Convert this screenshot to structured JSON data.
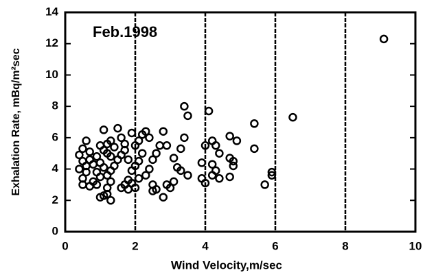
{
  "chart_data": {
    "type": "scatter",
    "annotation": "Feb.1998",
    "x_label": "Wind Velocity,m/sec",
    "y_label": "Exhalation Rate, mBq/m²sec",
    "xlim": [
      0,
      10
    ],
    "ylim": [
      0,
      14
    ],
    "xticks": [
      0,
      2,
      4,
      6,
      8,
      10
    ],
    "yticks": [
      0,
      2,
      4,
      6,
      8,
      10,
      12,
      14
    ],
    "grid": "x",
    "color": "#000000",
    "x": [
      9.1,
      6.5,
      5.4,
      5.4,
      5.7,
      5.9,
      5.9,
      4.1,
      3.4,
      3.5,
      3.4,
      4.2,
      4.0,
      4.3,
      4.7,
      4.9,
      4.4,
      4.7,
      4.8,
      4.8,
      4.2,
      4.3,
      3.9,
      4.2,
      4.4,
      3.9,
      4.0,
      4.7,
      3.3,
      3.1,
      3.2,
      3.3,
      3.5,
      3.1,
      3.0,
      2.9,
      2.8,
      2.9,
      2.7,
      2.6,
      2.5,
      2.4,
      2.3,
      2.5,
      2.5,
      2.8,
      2.6,
      2.3,
      2.4,
      2.2,
      2.1,
      2.0,
      1.9,
      2.2,
      2.1,
      2.0,
      1.9,
      1.8,
      1.9,
      2.0,
      2.1,
      1.7,
      1.6,
      1.8,
      1.6,
      1.7,
      1.5,
      1.6,
      1.5,
      1.4,
      1.3,
      1.2,
      1.3,
      1.2,
      1.2,
      1.3,
      1.1,
      1.0,
      1.1,
      1.2,
      1.0,
      1.1,
      1.2,
      1.3,
      0.9,
      1.0,
      1.1,
      0.9,
      1.0,
      0.8,
      0.9,
      0.7,
      0.8,
      0.7,
      0.6,
      0.5,
      0.4,
      0.5,
      0.4,
      0.6,
      0.5,
      0.7,
      0.6,
      0.5,
      1.4,
      1.3,
      1.7,
      1.8
    ],
    "values": [
      12.3,
      7.3,
      6.9,
      5.3,
      3.0,
      3.6,
      3.8,
      7.7,
      8.0,
      7.4,
      6.0,
      5.8,
      5.5,
      5.5,
      6.1,
      5.8,
      5.0,
      4.7,
      4.5,
      4.2,
      4.3,
      3.9,
      4.4,
      3.6,
      3.4,
      3.4,
      3.1,
      3.5,
      5.3,
      4.7,
      4.1,
      3.9,
      3.6,
      3.2,
      2.8,
      3.0,
      6.4,
      5.5,
      5.5,
      5.0,
      4.6,
      4.0,
      3.6,
      3.0,
      2.6,
      2.2,
      2.7,
      6.4,
      6.0,
      6.2,
      5.8,
      5.5,
      6.3,
      5.0,
      4.5,
      4.2,
      3.9,
      3.3,
      3.1,
      2.8,
      3.4,
      3.0,
      2.8,
      2.7,
      4.9,
      5.2,
      6.6,
      6.0,
      4.6,
      4.2,
      3.9,
      3.6,
      3.2,
      2.8,
      2.4,
      2.0,
      2.3,
      2.2,
      6.5,
      5.6,
      5.5,
      5.2,
      5.0,
      4.8,
      4.8,
      4.4,
      4.1,
      3.8,
      3.5,
      3.2,
      3.0,
      2.9,
      4.3,
      4.6,
      5.8,
      5.3,
      4.9,
      4.5,
      4.0,
      3.8,
      3.4,
      5.1,
      4.2,
      3.0,
      5.4,
      5.8,
      5.6,
      4.6
    ]
  }
}
